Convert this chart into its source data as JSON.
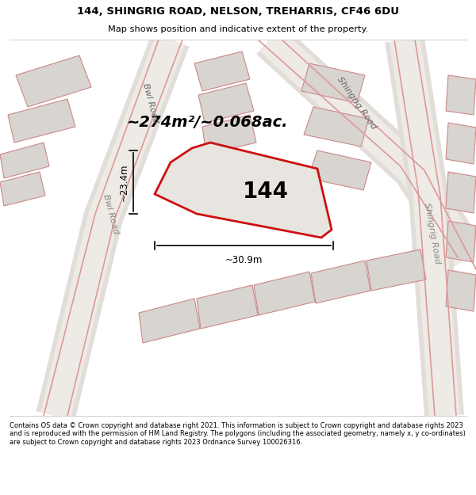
{
  "title_line1": "144, SHINGRIG ROAD, NELSON, TREHARRIS, CF46 6DU",
  "title_line2": "Map shows position and indicative extent of the property.",
  "footer_text": "Contains OS data © Crown copyright and database right 2021. This information is subject to Crown copyright and database rights 2023 and is reproduced with the permission of HM Land Registry. The polygons (including the associated geometry, namely x, y co-ordinates) are subject to Crown copyright and database rights 2023 Ordnance Survey 100026316.",
  "map_bg": "#f7f4f0",
  "road_bg": "#ffffff",
  "plot_fc": "#e8e4df",
  "plot_ec": "#cc1111",
  "bldg_fc": "#d8d4d0",
  "bldg_ec": "#cc8888",
  "road_line_color": "#dd9999",
  "area_text": "~274m²/~0.068ac.",
  "label_144": "144",
  "dim_width": "~30.9m",
  "dim_height": "~23.4m",
  "bwl_road": "Bwl Road",
  "shingrig_road_top": "Shingrig Road",
  "shingrig_road_right": "Shingrig Road"
}
